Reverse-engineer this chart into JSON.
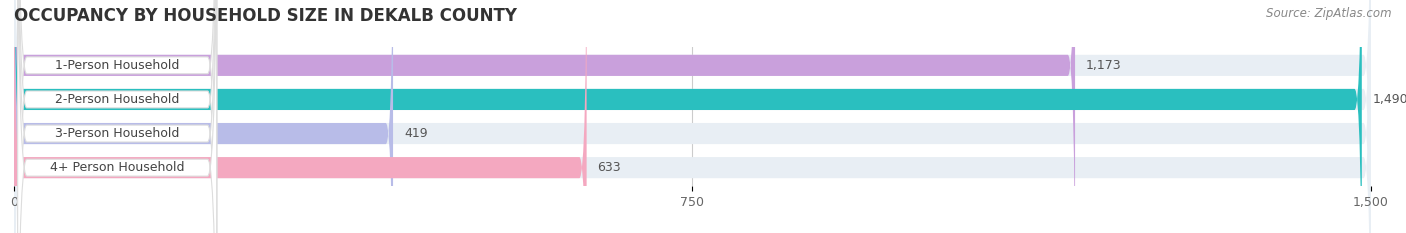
{
  "title": "OCCUPANCY BY HOUSEHOLD SIZE IN DEKALB COUNTY",
  "source": "Source: ZipAtlas.com",
  "categories": [
    "1-Person Household",
    "2-Person Household",
    "3-Person Household",
    "4+ Person Household"
  ],
  "values": [
    1173,
    1490,
    419,
    633
  ],
  "bar_colors": [
    "#c9a0dc",
    "#2abfbf",
    "#b8bce8",
    "#f4a8c0"
  ],
  "xlim": [
    0,
    1500
  ],
  "xticks": [
    0,
    750,
    1500
  ],
  "xtick_labels": [
    "0",
    "750",
    "1,500"
  ],
  "value_labels": [
    "1,173",
    "1,490",
    "419",
    "633"
  ],
  "background_color": "#ffffff",
  "bar_bg_color": "#e8eef4",
  "title_fontsize": 12,
  "label_fontsize": 9,
  "value_fontsize": 9,
  "source_fontsize": 8.5
}
